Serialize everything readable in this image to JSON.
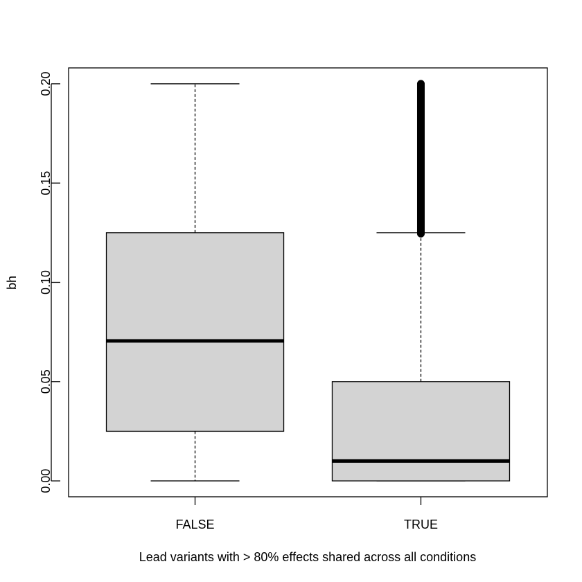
{
  "chart_data": {
    "type": "boxplot",
    "xlabel": "Lead variants with > 80% effects shared across all conditions",
    "ylabel": "bh",
    "ylim": [
      -0.008,
      0.208
    ],
    "y_ticks": [
      0.0,
      0.05,
      0.1,
      0.15,
      0.2
    ],
    "y_tick_labels": [
      "0.00",
      "0.05",
      "0.10",
      "0.15",
      "0.20"
    ],
    "categories": [
      "FALSE",
      "TRUE"
    ],
    "boxes": [
      {
        "category": "FALSE",
        "whisker_low": 0.0,
        "q1": 0.025,
        "median": 0.0705,
        "q3": 0.125,
        "whisker_high": 0.2,
        "outliers_from": null,
        "outliers_to": null
      },
      {
        "category": "TRUE",
        "whisker_low": 0.0,
        "q1": 0.0,
        "median": 0.01,
        "q3": 0.05,
        "whisker_high": 0.125,
        "outliers_from": 0.1245,
        "outliers_to": 0.2
      }
    ],
    "colors": {
      "box_fill": "#d3d3d3",
      "stroke": "#000000"
    },
    "grid": false,
    "legend": "none"
  }
}
